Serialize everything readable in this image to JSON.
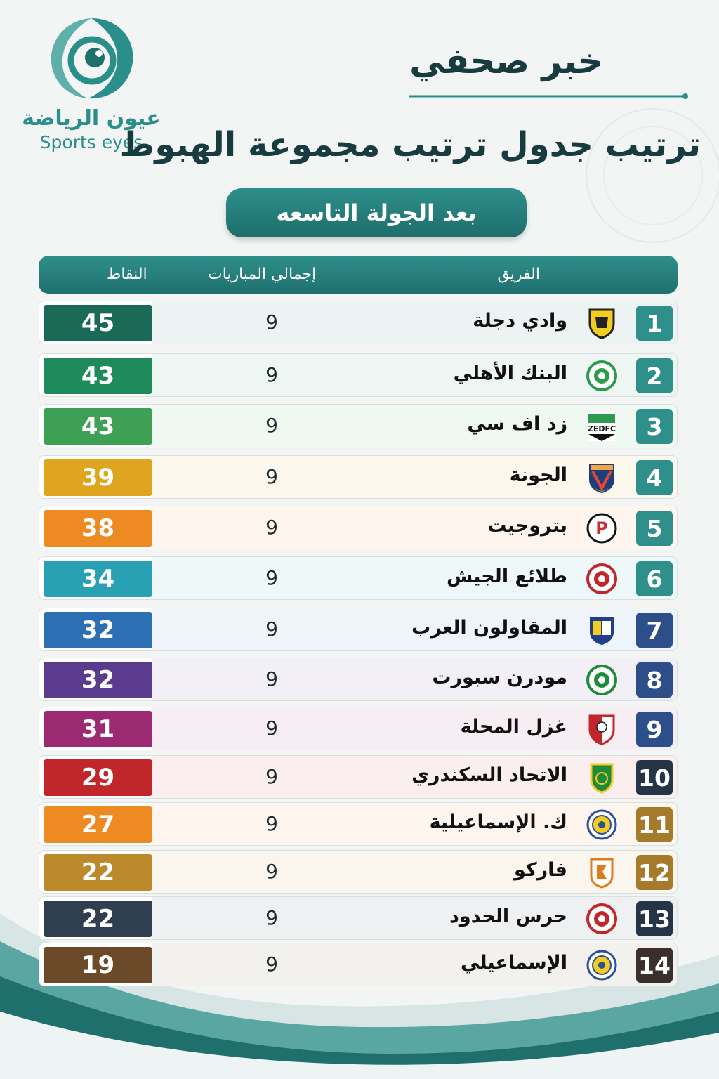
{
  "brand": {
    "name_ar": "عيون الرياضة",
    "name_en": "Sports eyes",
    "accent": "#2a8f8a"
  },
  "header": {
    "kicker": "خبر صحفي",
    "title": "ترتيب جدول ترتيب مجموعة الهبوط",
    "round": "بعد الجولة التاسعه"
  },
  "table": {
    "columns": {
      "team": "الفريق",
      "played": "إجمالي المباريات",
      "points": "النقاط"
    },
    "rows": [
      {
        "rank": "1",
        "team": "وادي دجلة",
        "played": "9",
        "points": "45",
        "color": "#1b6a57",
        "crest": "wadi-degla-crest-icon"
      },
      {
        "rank": "2",
        "team": "البنك الأهلي",
        "played": "9",
        "points": "43",
        "color": "#1f8a5c",
        "crest": "national-bank-crest-icon"
      },
      {
        "rank": "3",
        "team": "زد اف سي",
        "played": "9",
        "points": "43",
        "color": "#3ea055",
        "crest": "zed-fc-crest-icon"
      },
      {
        "rank": "4",
        "team": "الجونة",
        "played": "9",
        "points": "39",
        "color": "#e0a51e",
        "crest": "el-gouna-crest-icon"
      },
      {
        "rank": "5",
        "team": "بتروجيت",
        "played": "9",
        "points": "38",
        "color": "#ee8a22",
        "crest": "petrojet-crest-icon"
      },
      {
        "rank": "6",
        "team": "طلائع الجيش",
        "played": "9",
        "points": "34",
        "color": "#2aa0b5",
        "crest": "tala-el-gaish-crest-icon"
      },
      {
        "rank": "7",
        "team": "المقاولون العرب",
        "played": "9",
        "points": "32",
        "color": "#2c6fb2",
        "crest": "arab-contractors-crest-icon"
      },
      {
        "rank": "8",
        "team": "مودرن سبورت",
        "played": "9",
        "points": "32",
        "color": "#5b3b8e",
        "crest": "modern-sport-crest-icon"
      },
      {
        "rank": "9",
        "team": "غزل المحلة",
        "played": "9",
        "points": "31",
        "color": "#9c2a73",
        "crest": "ghazl-el-mahalla-crest-icon"
      },
      {
        "rank": "10",
        "team": "الاتحاد السكندري",
        "played": "9",
        "points": "29",
        "color": "#c0262a",
        "crest": "ittihad-alexandria-crest-icon"
      },
      {
        "rank": "11",
        "team": "ك. الإسماعيلية",
        "played": "9",
        "points": "27",
        "color": "#ee8a22",
        "crest": "ismaily-crest-icon"
      },
      {
        "rank": "12",
        "team": "فاركو",
        "played": "9",
        "points": "22",
        "color": "#bd8a2b",
        "crest": "pharco-crest-icon"
      },
      {
        "rank": "13",
        "team": "حرس الحدود",
        "played": "9",
        "points": "22",
        "color": "#2f3f50",
        "crest": "haras-el-hodoud-crest-icon"
      },
      {
        "rank": "14",
        "team": "الإسماعيلي",
        "played": "9",
        "points": "19",
        "color": "#6b4a2a",
        "crest": "ismaily-crest-icon"
      }
    ]
  }
}
